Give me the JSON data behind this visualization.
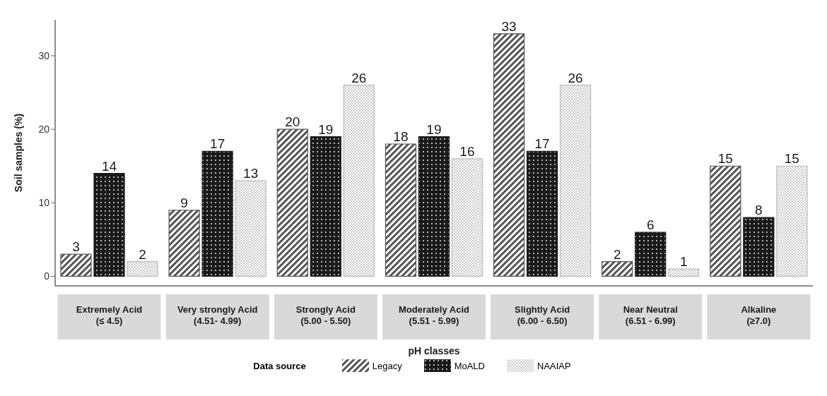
{
  "chart_data": {
    "type": "bar",
    "xlabel": "pH classes",
    "ylabel": "Soil samples (%)",
    "legend_title": "Data source",
    "categories": [
      "Extremely Acid\n(≤ 4.5)",
      "Very strongly Acid\n(4.51- 4.99)",
      "Strongly Acid\n(5.00 - 5.50)",
      "Moderately Acid\n(5.51 - 5.99)",
      "Slightly Acid\n(6.00 - 6.50)",
      "Near Neutral\n(6.51 - 6.99)",
      "Alkaline\n(≥7.0)"
    ],
    "series": [
      {
        "name": "Legacy",
        "color": "#555555",
        "values": [
          3,
          9,
          20,
          18,
          33,
          2,
          15
        ]
      },
      {
        "name": "MoALD",
        "color": "#1a1a1a",
        "values": [
          14,
          17,
          19,
          19,
          17,
          6,
          8
        ]
      },
      {
        "name": "NAAIAP",
        "color": "#bbbbbb",
        "values": [
          2,
          13,
          26,
          16,
          26,
          1,
          15
        ]
      }
    ],
    "ylim": [
      -1.3,
      34.9
    ],
    "yticks": [
      0,
      10,
      20,
      30
    ],
    "legend": "bottom",
    "data_labels": true
  }
}
